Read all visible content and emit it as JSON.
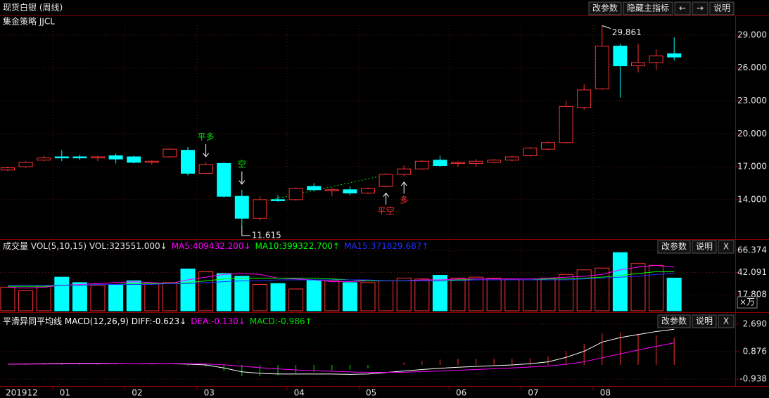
{
  "chart_data": [
    {
      "type": "candlestick",
      "title": "现货白银 (周线)",
      "subtitle": "集金策略 JJCL",
      "buttons": [
        "改参数",
        "隐藏主指标",
        "←",
        "→",
        "说明"
      ],
      "categories": [
        "201912",
        null,
        null,
        "01",
        null,
        null,
        null,
        "02",
        null,
        null,
        null,
        "03",
        null,
        null,
        null,
        null,
        "04",
        null,
        null,
        null,
        "05",
        null,
        null,
        null,
        null,
        "06",
        null,
        null,
        null,
        "07",
        null,
        null,
        null,
        "08",
        null,
        null,
        null,
        null
      ],
      "open": [
        16.7,
        17.0,
        17.6,
        17.9,
        17.9,
        17.8,
        18.0,
        17.9,
        17.4,
        17.9,
        18.5,
        16.4,
        17.3,
        14.3,
        12.3,
        14.0,
        14.0,
        15.2,
        14.8,
        14.9,
        14.6,
        15.2,
        16.3,
        16.8,
        17.6,
        17.3,
        17.3,
        17.4,
        17.6,
        18.0,
        18.6,
        19.2,
        22.4,
        24.1,
        28.0,
        26.2,
        26.5,
        27.3
      ],
      "high": [
        17.0,
        17.5,
        18.0,
        18.5,
        18.1,
        18.0,
        18.2,
        18.0,
        17.6,
        18.7,
        18.8,
        17.4,
        17.4,
        14.9,
        14.3,
        14.4,
        15.1,
        15.5,
        15.1,
        15.2,
        15.1,
        16.4,
        17.1,
        17.6,
        18.0,
        17.5,
        17.7,
        17.7,
        18.0,
        18.8,
        19.3,
        23.0,
        24.5,
        29.861,
        28.2,
        28.2,
        27.7,
        28.8
      ],
      "low": [
        16.6,
        16.9,
        17.5,
        17.5,
        17.6,
        17.5,
        17.3,
        17.3,
        17.2,
        17.8,
        16.2,
        16.3,
        14.2,
        11.615,
        12.1,
        13.8,
        13.9,
        14.8,
        14.3,
        14.4,
        14.5,
        15.1,
        16.1,
        16.7,
        17.0,
        17.0,
        17.0,
        17.3,
        17.5,
        17.9,
        18.5,
        19.1,
        22.2,
        24.0,
        23.3,
        25.6,
        25.8,
        26.7
      ],
      "close": [
        16.9,
        17.4,
        17.8,
        17.8,
        17.8,
        17.9,
        17.7,
        17.4,
        17.5,
        18.6,
        16.4,
        17.2,
        14.3,
        12.3,
        14.0,
        13.9,
        15.0,
        14.9,
        14.9,
        14.6,
        15.0,
        16.3,
        16.8,
        17.5,
        17.1,
        17.4,
        17.5,
        17.6,
        17.9,
        18.7,
        19.2,
        22.5,
        24.0,
        28.0,
        26.2,
        26.5,
        27.1,
        27.0
      ],
      "signals": [
        null,
        null,
        null,
        null,
        null,
        null,
        null,
        null,
        null,
        null,
        null,
        {
          "text": "平多",
          "color": "#00e000",
          "position": "above"
        },
        null,
        {
          "text": "空",
          "color": "#00e000",
          "position": "above"
        },
        null,
        null,
        null,
        null,
        null,
        null,
        null,
        {
          "text": "平空",
          "color": "#ff3232",
          "position": "below"
        },
        {
          "text": "多",
          "color": "#ff3232",
          "position": "below"
        },
        null,
        null,
        null,
        null,
        null,
        null,
        null,
        null,
        null,
        null,
        null,
        null,
        null,
        null,
        null
      ],
      "up_color": "#ff3232",
      "down_color": "#00ffff",
      "ylim": [
        10.4,
        30.15
      ],
      "yticks": [
        {
          "value": 29,
          "label": "29.000"
        },
        {
          "value": 26,
          "label": "26.000"
        },
        {
          "value": 23,
          "label": "23.000"
        },
        {
          "value": 20,
          "label": "20.000"
        },
        {
          "value": 17,
          "label": "17.000"
        },
        {
          "value": 14,
          "label": "14.000"
        }
      ],
      "grid": true
    },
    {
      "type": "combo",
      "buttons": [
        "改参数",
        "说明",
        "X"
      ],
      "unit_label": "×万",
      "series": [
        {
          "name": "成交量 VOL(5,10,15) VOL:323551.000↓",
          "kind": "bar",
          "values": [
            26,
            22,
            27,
            37,
            31,
            28,
            29,
            33,
            30,
            31,
            46,
            43,
            41,
            38,
            29,
            30,
            24,
            34,
            33,
            31,
            31,
            33,
            36,
            35,
            39,
            36,
            37,
            36,
            35,
            34,
            36,
            40,
            45,
            47,
            64,
            52,
            50,
            36
          ]
        },
        {
          "name": "MA5:409432.200↓",
          "kind": "line",
          "color": "#ff00ff",
          "values": [
            26,
            25,
            26,
            28,
            29,
            30,
            31,
            32,
            31,
            30,
            34,
            37,
            40,
            41,
            40,
            36,
            35,
            34,
            32,
            32,
            33,
            33,
            33,
            34,
            34,
            35,
            35,
            35,
            35,
            35,
            36,
            37,
            38,
            40,
            45,
            48,
            50,
            48
          ]
        },
        {
          "name": "MA10:399322.700↑",
          "kind": "line",
          "color": "#00ff00",
          "values": [
            27,
            27,
            27,
            28,
            28,
            29,
            29,
            30,
            30,
            30,
            31,
            33,
            35,
            36,
            36,
            36,
            36,
            36,
            35,
            34,
            33,
            33,
            33,
            33,
            33,
            34,
            34,
            34,
            34,
            34,
            35,
            35,
            36,
            37,
            39,
            41,
            43,
            43
          ]
        },
        {
          "name": "MA15:371829.687↑",
          "kind": "line",
          "color": "#2030ff",
          "values": [
            28,
            28,
            28,
            28,
            28,
            29,
            29,
            29,
            29,
            30,
            30,
            31,
            32,
            33,
            33,
            34,
            34,
            34,
            34,
            34,
            34,
            33,
            33,
            33,
            33,
            33,
            34,
            34,
            34,
            34,
            34,
            34,
            35,
            36,
            37,
            38,
            40,
            41
          ]
        }
      ],
      "ylim": [
        0,
        75
      ],
      "yticks": [
        66.374,
        42.091,
        17.808
      ],
      "grid": true
    },
    {
      "type": "combo",
      "buttons": [
        "改参数",
        "说明",
        "X"
      ],
      "series": [
        {
          "name": "平滑异同平均线 MACD(12,26,9) DIFF:-0.623↓",
          "kind": "line",
          "color": "#ffffff",
          "values": [
            0.05,
            0.06,
            0.08,
            0.09,
            0.1,
            0.1,
            0.1,
            0.09,
            0.08,
            0.09,
            0.05,
            0.0,
            -0.2,
            -0.45,
            -0.55,
            -0.6,
            -0.6,
            -0.6,
            -0.6,
            -0.62,
            -0.6,
            -0.5,
            -0.4,
            -0.3,
            -0.22,
            -0.15,
            -0.1,
            -0.05,
            0.0,
            0.08,
            0.2,
            0.5,
            0.9,
            1.5,
            1.8,
            2.0,
            2.2,
            2.35
          ]
        },
        {
          "name": "DEA:-0.130↓",
          "kind": "line",
          "color": "#ff00ff",
          "values": [
            0.05,
            0.05,
            0.06,
            0.07,
            0.08,
            0.08,
            0.09,
            0.09,
            0.09,
            0.09,
            0.08,
            0.06,
            0.01,
            -0.08,
            -0.18,
            -0.26,
            -0.33,
            -0.38,
            -0.42,
            -0.46,
            -0.49,
            -0.49,
            -0.48,
            -0.44,
            -0.4,
            -0.35,
            -0.3,
            -0.25,
            -0.2,
            -0.14,
            -0.07,
            0.04,
            0.21,
            0.47,
            0.73,
            0.98,
            1.22,
            1.45
          ]
        },
        {
          "name": "MACD:-0.986↑",
          "kind": "bar",
          "color": "#00e000",
          "positive_color": "#ff3232",
          "values": [
            0,
            0.02,
            0.04,
            0.04,
            0.04,
            0.04,
            0.02,
            0,
            -0.02,
            0,
            -0.06,
            -0.12,
            -0.42,
            -0.74,
            -0.74,
            -0.68,
            -0.54,
            -0.44,
            -0.36,
            -0.32,
            -0.22,
            -0.02,
            0.16,
            0.28,
            0.36,
            0.4,
            0.4,
            0.4,
            0.4,
            0.44,
            0.54,
            0.92,
            1.38,
            2.06,
            2.14,
            2.04,
            1.96,
            1.8
          ]
        }
      ],
      "ylim": [
        -1.39,
        3.1
      ],
      "yticks": [
        {
          "value": 2.69,
          "label": "2.690"
        },
        0.876,
        -0.938
      ],
      "grid": true
    }
  ]
}
